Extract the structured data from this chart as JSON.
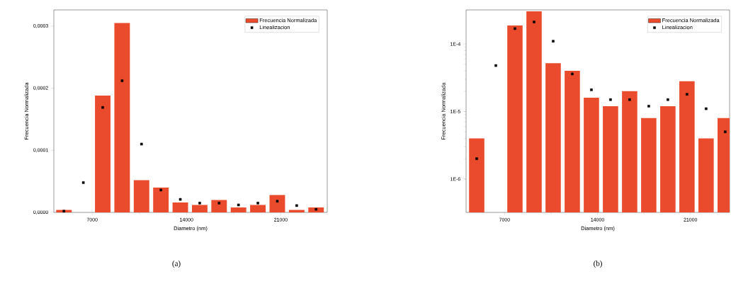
{
  "chart_data": [
    {
      "type": "bar",
      "xlabel": "Diametro (nm)",
      "ylabel": "Frecuencia Normalizada",
      "annotations": [
        "(a)"
      ],
      "x": [
        4900,
        6340,
        7780,
        9220,
        10660,
        12100,
        13540,
        14980,
        16420,
        17860,
        19300,
        20740,
        22180,
        23620
      ],
      "xlim": [
        4150,
        24450
      ],
      "xticks": [
        7000,
        14000,
        21000
      ],
      "ylim": [
        0,
        0.000326
      ],
      "yticks": [
        {
          "value": 0,
          "label": "0,0000"
        },
        {
          "value": 0.0001,
          "label": "0,0001"
        },
        {
          "value": 0.0002,
          "label": "0,0002"
        },
        {
          "value": 0.0003,
          "label": "0,0003"
        }
      ],
      "legend": "top right",
      "series": [
        {
          "name": "Frecuencia Normalizada",
          "color": "#ea4b2c",
          "values": [
            4e-06,
            null,
            0.000188,
            0.000305,
            5.2e-05,
            4e-05,
            1.6e-05,
            1.2e-05,
            2e-05,
            8e-06,
            1.2e-05,
            2.8e-05,
            4e-06,
            8e-06
          ]
        },
        {
          "name": "Linealizacion",
          "type": "scatter",
          "color": "#000000",
          "marker": "square",
          "values": [
            2e-06,
            4.8e-05,
            0.000169,
            0.000212,
            0.00011,
            3.6e-05,
            2.1e-05,
            1.5e-05,
            1.5e-05,
            1.2e-05,
            1.5e-05,
            1.8e-05,
            1.1e-05,
            5e-06
          ]
        }
      ]
    },
    {
      "type": "bar",
      "xlabel": "Diametro (nm)",
      "ylabel": "Frecuencia Normalizada",
      "annotations": [
        "(b)"
      ],
      "log": "y",
      "x": [
        4900,
        6340,
        7780,
        9220,
        10660,
        12100,
        13540,
        14980,
        16420,
        17860,
        19300,
        20740,
        22180,
        23620
      ],
      "xlim": [
        4100,
        23950
      ],
      "xticks": [
        7000,
        14000,
        21000
      ],
      "ylim": [
        3.2e-07,
        0.00032
      ],
      "yticks": [
        {
          "value": 1e-06,
          "label": "1E-6"
        },
        {
          "value": 1e-05,
          "label": "1E-5"
        },
        {
          "value": 0.0001,
          "label": "1E-4"
        }
      ],
      "legend": "top right",
      "series": [
        {
          "name": "Frecuencia Normalizada",
          "color": "#ea4b2c",
          "values": [
            4e-06,
            null,
            0.000188,
            0.000305,
            5.2e-05,
            4e-05,
            1.6e-05,
            1.2e-05,
            2e-05,
            8e-06,
            1.2e-05,
            2.8e-05,
            4e-06,
            8e-06
          ]
        },
        {
          "name": "Linealizacion",
          "type": "scatter",
          "color": "#000000",
          "marker": "square",
          "values": [
            2e-06,
            4.8e-05,
            0.000169,
            0.000212,
            0.00011,
            3.6e-05,
            2.1e-05,
            1.5e-05,
            1.5e-05,
            1.2e-05,
            1.5e-05,
            1.8e-05,
            1.1e-05,
            5e-06
          ]
        }
      ]
    }
  ]
}
